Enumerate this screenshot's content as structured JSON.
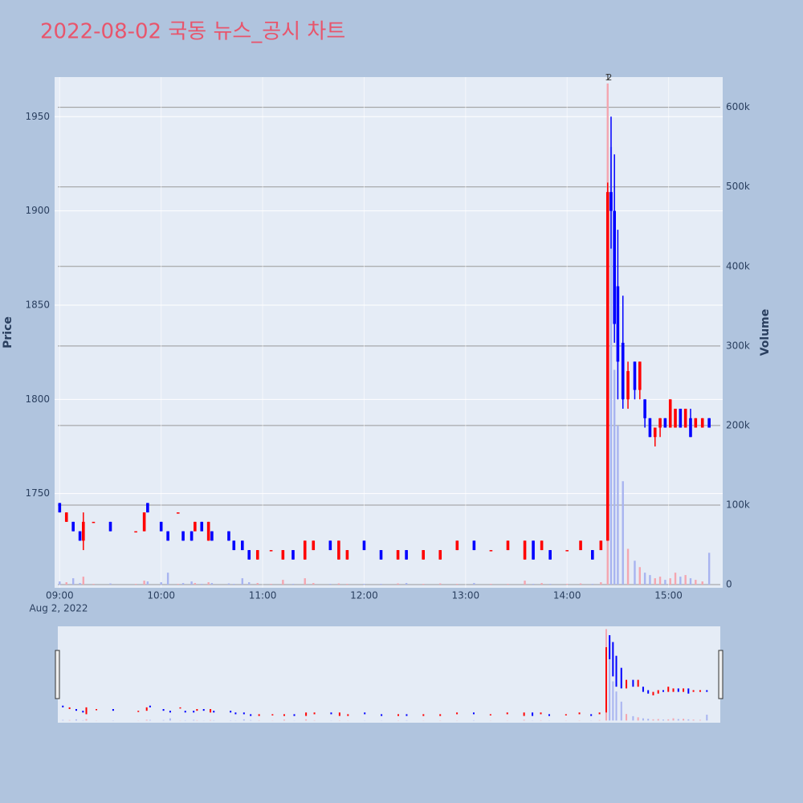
{
  "chart_data": {
    "type": "candlestick",
    "title": "2022-08-02 국동 뉴스_공시 차트",
    "y_title": "Price",
    "y2_title": "Volume",
    "x_date_label": "Aug 2, 2022",
    "increasing_color": "#ff0000",
    "decreasing_color": "#0000ff",
    "volume_increasing_color": "#f4a6b0",
    "volume_decreasing_color": "#a8b4f0",
    "xlim": [
      "08:57",
      "15:32"
    ],
    "xticks": [
      "09:00",
      "10:00",
      "11:00",
      "12:00",
      "13:00",
      "14:00",
      "15:00"
    ],
    "ylim": [
      1700,
      1971
    ],
    "yticks": [
      1750,
      1800,
      1850,
      1900,
      1950
    ],
    "y2lim": [
      -4000,
      638000
    ],
    "y2ticks": [
      0,
      {
        "value": 100000,
        "label": "100k"
      },
      {
        "value": 200000,
        "label": "200k"
      },
      {
        "value": 300000,
        "label": "300k"
      },
      {
        "value": 400000,
        "label": "400k"
      },
      {
        "value": 500000,
        "label": "500k"
      },
      {
        "value": 600000,
        "label": "600k"
      }
    ],
    "annotations": [
      {
        "x": "14:24",
        "text": "1"
      },
      {
        "x": "14:25",
        "text": "2"
      }
    ],
    "x": [
      "09:00",
      "09:04",
      "09:08",
      "09:12",
      "09:14",
      "09:20",
      "09:30",
      "09:45",
      "09:50",
      "09:52",
      "10:00",
      "10:04",
      "10:10",
      "10:13",
      "10:18",
      "10:20",
      "10:24",
      "10:28",
      "10:30",
      "10:40",
      "10:43",
      "10:48",
      "10:52",
      "10:57",
      "11:05",
      "11:12",
      "11:18",
      "11:25",
      "11:30",
      "11:40",
      "11:45",
      "11:50",
      "12:00",
      "12:10",
      "12:20",
      "12:25",
      "12:35",
      "12:45",
      "12:55",
      "13:05",
      "13:15",
      "13:25",
      "13:35",
      "13:40",
      "13:45",
      "13:50",
      "14:00",
      "14:08",
      "14:15",
      "14:20",
      "14:24",
      "14:26",
      "14:28",
      "14:30",
      "14:33",
      "14:36",
      "14:40",
      "14:43",
      "14:46",
      "14:49",
      "14:52",
      "14:55",
      "14:58",
      "15:01",
      "15:04",
      "15:07",
      "15:10",
      "15:13",
      "15:16",
      "15:20",
      "15:24"
    ],
    "open": [
      1745,
      1735,
      1735,
      1730,
      1725,
      1735,
      1735,
      1730,
      1730,
      1745,
      1735,
      1730,
      1740,
      1730,
      1730,
      1730,
      1735,
      1725,
      1730,
      1730,
      1725,
      1725,
      1720,
      1715,
      1720,
      1715,
      1720,
      1715,
      1720,
      1725,
      1715,
      1715,
      1725,
      1720,
      1715,
      1720,
      1715,
      1715,
      1720,
      1725,
      1720,
      1720,
      1715,
      1725,
      1720,
      1720,
      1720,
      1720,
      1720,
      1720,
      1725,
      1910,
      1900,
      1860,
      1830,
      1800,
      1820,
      1805,
      1800,
      1790,
      1780,
      1785,
      1790,
      1785,
      1785,
      1795,
      1785,
      1790,
      1785,
      1785,
      1790
    ],
    "high": [
      1745,
      1740,
      1735,
      1730,
      1740,
      1735,
      1735,
      1730,
      1740,
      1745,
      1735,
      1730,
      1740,
      1730,
      1730,
      1735,
      1735,
      1735,
      1730,
      1730,
      1725,
      1725,
      1720,
      1720,
      1720,
      1720,
      1720,
      1725,
      1725,
      1725,
      1725,
      1720,
      1725,
      1720,
      1720,
      1720,
      1720,
      1720,
      1725,
      1725,
      1720,
      1725,
      1725,
      1725,
      1725,
      1720,
      1720,
      1725,
      1720,
      1725,
      1915,
      1950,
      1930,
      1890,
      1855,
      1820,
      1820,
      1820,
      1800,
      1790,
      1785,
      1790,
      1790,
      1800,
      1795,
      1795,
      1795,
      1795,
      1790,
      1790,
      1790
    ],
    "low": [
      1740,
      1735,
      1730,
      1725,
      1720,
      1735,
      1730,
      1730,
      1730,
      1740,
      1730,
      1725,
      1740,
      1725,
      1725,
      1730,
      1730,
      1725,
      1725,
      1725,
      1720,
      1720,
      1715,
      1715,
      1720,
      1715,
      1715,
      1715,
      1720,
      1720,
      1715,
      1715,
      1720,
      1715,
      1715,
      1715,
      1715,
      1715,
      1720,
      1720,
      1720,
      1720,
      1715,
      1715,
      1720,
      1715,
      1720,
      1720,
      1715,
      1720,
      1725,
      1880,
      1830,
      1800,
      1795,
      1795,
      1800,
      1800,
      1785,
      1780,
      1775,
      1780,
      1785,
      1785,
      1785,
      1785,
      1785,
      1780,
      1785,
      1785,
      1785
    ],
    "close": [
      1740,
      1740,
      1730,
      1725,
      1735,
      1735,
      1730,
      1730,
      1740,
      1740,
      1730,
      1725,
      1740,
      1725,
      1725,
      1735,
      1730,
      1735,
      1725,
      1725,
      1720,
      1720,
      1715,
      1720,
      1720,
      1720,
      1715,
      1725,
      1725,
      1720,
      1725,
      1720,
      1720,
      1715,
      1720,
      1715,
      1720,
      1720,
      1725,
      1720,
      1720,
      1725,
      1725,
      1715,
      1725,
      1715,
      1720,
      1725,
      1715,
      1725,
      1910,
      1900,
      1840,
      1820,
      1800,
      1815,
      1805,
      1820,
      1790,
      1780,
      1785,
      1790,
      1785,
      1800,
      1795,
      1785,
      1795,
      1780,
      1790,
      1790,
      1785
    ],
    "volume": [
      4000,
      3000,
      8000,
      2000,
      10000,
      1000,
      1500,
      1000,
      5000,
      4000,
      3000,
      15000,
      1000,
      2000,
      4000,
      2000,
      1000,
      3000,
      2000,
      1500,
      1000,
      8000,
      3000,
      2000,
      1000,
      6000,
      1000,
      8000,
      2000,
      1000,
      1500,
      1000,
      1000,
      1000,
      1500,
      2000,
      1000,
      1500,
      1000,
      2000,
      1000,
      1000,
      5000,
      1000,
      2000,
      1000,
      1000,
      1500,
      1000,
      3000,
      630000,
      550000,
      270000,
      200000,
      130000,
      45000,
      30000,
      22000,
      15000,
      12000,
      8000,
      10000,
      6000,
      8000,
      15000,
      10000,
      12000,
      8000,
      6000,
      4000,
      40000
    ]
  }
}
